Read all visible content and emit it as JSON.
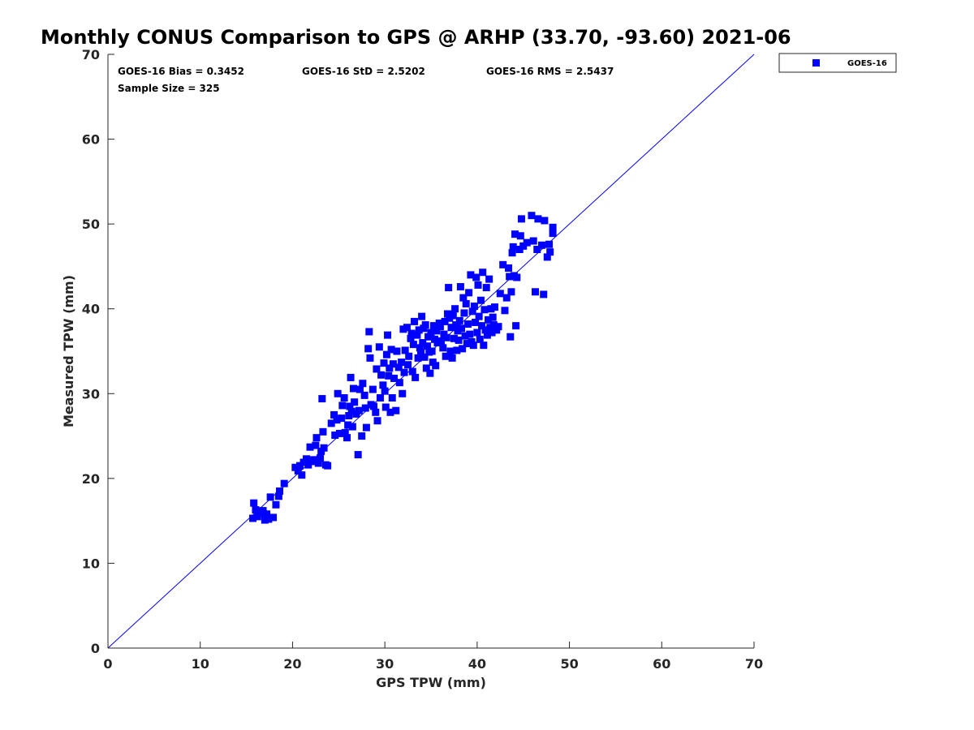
{
  "chart_data": {
    "type": "scatter",
    "title": "Monthly CONUS Comparison to GPS @ ARHP (33.70, -93.60) 2021-06",
    "xlabel": "GPS TPW (mm)",
    "ylabel": "Measured TPW (mm)",
    "xlim": [
      0,
      70
    ],
    "ylim": [
      0,
      70
    ],
    "xticks": [
      0,
      10,
      20,
      30,
      40,
      50,
      60,
      70
    ],
    "yticks": [
      0,
      10,
      20,
      30,
      40,
      50,
      60,
      70
    ],
    "grid": false,
    "legend_position": "outside-top-right",
    "annotations": {
      "bias": "GOES-16 Bias = 0.3452",
      "std": "GOES-16 StD = 2.5202",
      "rms": "GOES-16 RMS = 2.5437",
      "sample_size": "Sample Size = 325"
    },
    "reference_line": {
      "x": [
        0,
        70
      ],
      "y": [
        0,
        70
      ],
      "color": "#0000ff"
    },
    "series": [
      {
        "name": "GOES-16",
        "color": "#0000ff",
        "marker": "square",
        "points": [
          [
            15.7,
            15.3
          ],
          [
            15.8,
            17.1
          ],
          [
            16.0,
            16.3
          ],
          [
            16.2,
            15.5
          ],
          [
            16.5,
            15.9
          ],
          [
            16.8,
            16.2
          ],
          [
            17.0,
            15.1
          ],
          [
            17.2,
            15.8
          ],
          [
            17.4,
            15.2
          ],
          [
            17.6,
            17.8
          ],
          [
            17.9,
            15.4
          ],
          [
            18.2,
            16.9
          ],
          [
            18.5,
            17.9
          ],
          [
            18.6,
            18.5
          ],
          [
            19.1,
            19.4
          ],
          [
            20.3,
            21.3
          ],
          [
            20.6,
            20.9
          ],
          [
            20.8,
            21.5
          ],
          [
            21.0,
            20.4
          ],
          [
            21.2,
            21.9
          ],
          [
            21.5,
            22.3
          ],
          [
            21.7,
            21.6
          ],
          [
            21.9,
            23.7
          ],
          [
            22.1,
            22.0
          ],
          [
            22.3,
            22.2
          ],
          [
            22.5,
            23.9
          ],
          [
            22.6,
            24.8
          ],
          [
            22.8,
            21.8
          ],
          [
            23.0,
            22.4
          ],
          [
            23.1,
            23.2
          ],
          [
            23.2,
            29.4
          ],
          [
            23.3,
            25.5
          ],
          [
            23.4,
            23.6
          ],
          [
            23.6,
            21.6
          ],
          [
            23.8,
            21.5
          ],
          [
            24.2,
            26.5
          ],
          [
            24.5,
            27.5
          ],
          [
            24.6,
            25.1
          ],
          [
            24.8,
            26.9
          ],
          [
            24.9,
            30.0
          ],
          [
            25.1,
            25.3
          ],
          [
            25.3,
            27.1
          ],
          [
            25.4,
            28.6
          ],
          [
            25.6,
            29.5
          ],
          [
            25.7,
            25.4
          ],
          [
            25.9,
            24.8
          ],
          [
            26.0,
            26.3
          ],
          [
            26.1,
            27.4
          ],
          [
            26.2,
            28.5
          ],
          [
            26.3,
            31.9
          ],
          [
            26.4,
            27.9
          ],
          [
            26.5,
            26.1
          ],
          [
            26.6,
            30.6
          ],
          [
            26.7,
            29.0
          ],
          [
            26.9,
            27.6
          ],
          [
            27.1,
            22.8
          ],
          [
            27.2,
            28.0
          ],
          [
            27.3,
            30.5
          ],
          [
            27.5,
            25.0
          ],
          [
            27.6,
            31.2
          ],
          [
            27.8,
            29.8
          ],
          [
            27.9,
            28.3
          ],
          [
            28.0,
            26.0
          ],
          [
            28.2,
            35.3
          ],
          [
            28.3,
            37.3
          ],
          [
            28.4,
            34.2
          ],
          [
            28.5,
            28.7
          ],
          [
            28.7,
            30.5
          ],
          [
            28.8,
            28.5
          ],
          [
            29.0,
            27.8
          ],
          [
            29.1,
            32.9
          ],
          [
            29.2,
            26.8
          ],
          [
            29.4,
            35.5
          ],
          [
            29.5,
            29.5
          ],
          [
            29.6,
            32.2
          ],
          [
            29.8,
            31.0
          ],
          [
            29.9,
            33.6
          ],
          [
            30.0,
            30.3
          ],
          [
            30.1,
            28.4
          ],
          [
            30.2,
            34.6
          ],
          [
            30.3,
            36.9
          ],
          [
            30.4,
            32.1
          ],
          [
            30.5,
            33.0
          ],
          [
            30.6,
            27.8
          ],
          [
            30.7,
            35.2
          ],
          [
            30.8,
            29.5
          ],
          [
            30.9,
            33.5
          ],
          [
            31.0,
            31.8
          ],
          [
            31.2,
            28.0
          ],
          [
            31.3,
            35.0
          ],
          [
            31.5,
            33.1
          ],
          [
            31.6,
            31.3
          ],
          [
            31.8,
            33.7
          ],
          [
            31.9,
            30.0
          ],
          [
            32.0,
            37.6
          ],
          [
            32.1,
            32.5
          ],
          [
            32.2,
            35.1
          ],
          [
            32.4,
            37.8
          ],
          [
            32.5,
            33.4
          ],
          [
            32.6,
            34.4
          ],
          [
            32.8,
            36.5
          ],
          [
            32.9,
            37.1
          ],
          [
            33.0,
            32.6
          ],
          [
            33.1,
            35.8
          ],
          [
            33.2,
            38.5
          ],
          [
            33.3,
            31.9
          ],
          [
            33.5,
            36.9
          ],
          [
            33.6,
            34.2
          ],
          [
            33.7,
            37.5
          ],
          [
            33.8,
            35.4
          ],
          [
            33.9,
            34.8
          ],
          [
            34.0,
            39.1
          ],
          [
            34.1,
            36.0
          ],
          [
            34.2,
            37.7
          ],
          [
            34.3,
            34.3
          ],
          [
            34.4,
            38.1
          ],
          [
            34.5,
            33.0
          ],
          [
            34.6,
            35.6
          ],
          [
            34.7,
            36.7
          ],
          [
            34.8,
            34.9
          ],
          [
            34.9,
            32.4
          ],
          [
            35.0,
            37.2
          ],
          [
            35.1,
            35.0
          ],
          [
            35.2,
            33.7
          ],
          [
            35.3,
            38.0
          ],
          [
            35.4,
            36.4
          ],
          [
            35.5,
            33.3
          ],
          [
            35.6,
            37.4
          ],
          [
            35.7,
            36.0
          ],
          [
            35.9,
            38.3
          ],
          [
            36.0,
            37.9
          ],
          [
            36.1,
            36.2
          ],
          [
            36.3,
            35.4
          ],
          [
            36.4,
            37.0
          ],
          [
            36.5,
            38.5
          ],
          [
            36.6,
            34.4
          ],
          [
            36.7,
            36.6
          ],
          [
            36.8,
            39.4
          ],
          [
            36.9,
            42.5
          ],
          [
            37.0,
            38.9
          ],
          [
            37.1,
            35.0
          ],
          [
            37.2,
            37.8
          ],
          [
            37.3,
            34.2
          ],
          [
            37.4,
            39.2
          ],
          [
            37.5,
            36.5
          ],
          [
            37.6,
            40.0
          ],
          [
            37.7,
            38.1
          ],
          [
            37.8,
            35.1
          ],
          [
            37.9,
            37.4
          ],
          [
            38.0,
            36.3
          ],
          [
            38.1,
            38.6
          ],
          [
            38.2,
            42.6
          ],
          [
            38.3,
            37.7
          ],
          [
            38.4,
            35.3
          ],
          [
            38.5,
            41.3
          ],
          [
            38.6,
            39.5
          ],
          [
            38.7,
            36.8
          ],
          [
            38.8,
            40.6
          ],
          [
            38.9,
            35.9
          ],
          [
            39.0,
            38.2
          ],
          [
            39.1,
            41.9
          ],
          [
            39.2,
            37.0
          ],
          [
            39.3,
            44.0
          ],
          [
            39.4,
            36.1
          ],
          [
            39.5,
            39.7
          ],
          [
            39.6,
            35.7
          ],
          [
            39.7,
            40.3
          ],
          [
            39.8,
            38.4
          ],
          [
            39.9,
            43.7
          ],
          [
            40.0,
            37.2
          ],
          [
            40.1,
            42.8
          ],
          [
            40.2,
            39.1
          ],
          [
            40.3,
            36.4
          ],
          [
            40.4,
            41.0
          ],
          [
            40.5,
            38.0
          ],
          [
            40.6,
            44.3
          ],
          [
            40.7,
            35.7
          ],
          [
            40.8,
            39.9
          ],
          [
            40.9,
            37.5
          ],
          [
            41.0,
            42.5
          ],
          [
            41.1,
            36.9
          ],
          [
            41.2,
            38.7
          ],
          [
            41.3,
            43.5
          ],
          [
            41.4,
            37.8
          ],
          [
            41.5,
            40.0
          ],
          [
            41.6,
            37.2
          ],
          [
            41.7,
            39.0
          ],
          [
            41.8,
            38.1
          ],
          [
            41.9,
            40.2
          ],
          [
            42.1,
            37.5
          ],
          [
            42.3,
            37.9
          ],
          [
            42.5,
            41.8
          ],
          [
            42.8,
            45.2
          ],
          [
            43.0,
            39.8
          ],
          [
            43.2,
            41.3
          ],
          [
            43.4,
            44.8
          ],
          [
            43.5,
            43.8
          ],
          [
            43.6,
            36.7
          ],
          [
            43.7,
            42.0
          ],
          [
            43.8,
            46.6
          ],
          [
            43.9,
            47.3
          ],
          [
            44.0,
            43.9
          ],
          [
            44.1,
            48.8
          ],
          [
            44.2,
            38.0
          ],
          [
            44.3,
            43.7
          ],
          [
            44.6,
            47.0
          ],
          [
            44.7,
            48.6
          ],
          [
            44.8,
            50.6
          ],
          [
            45.0,
            47.4
          ],
          [
            45.4,
            47.8
          ],
          [
            45.9,
            51.0
          ],
          [
            46.1,
            48.0
          ],
          [
            46.3,
            42.0
          ],
          [
            46.5,
            47.0
          ],
          [
            46.6,
            50.6
          ],
          [
            47.0,
            47.5
          ],
          [
            47.2,
            41.7
          ],
          [
            47.3,
            50.4
          ],
          [
            47.6,
            46.1
          ],
          [
            47.8,
            47.6
          ],
          [
            47.9,
            46.7
          ],
          [
            48.2,
            48.9
          ],
          [
            48.2,
            49.6
          ]
        ]
      }
    ]
  }
}
